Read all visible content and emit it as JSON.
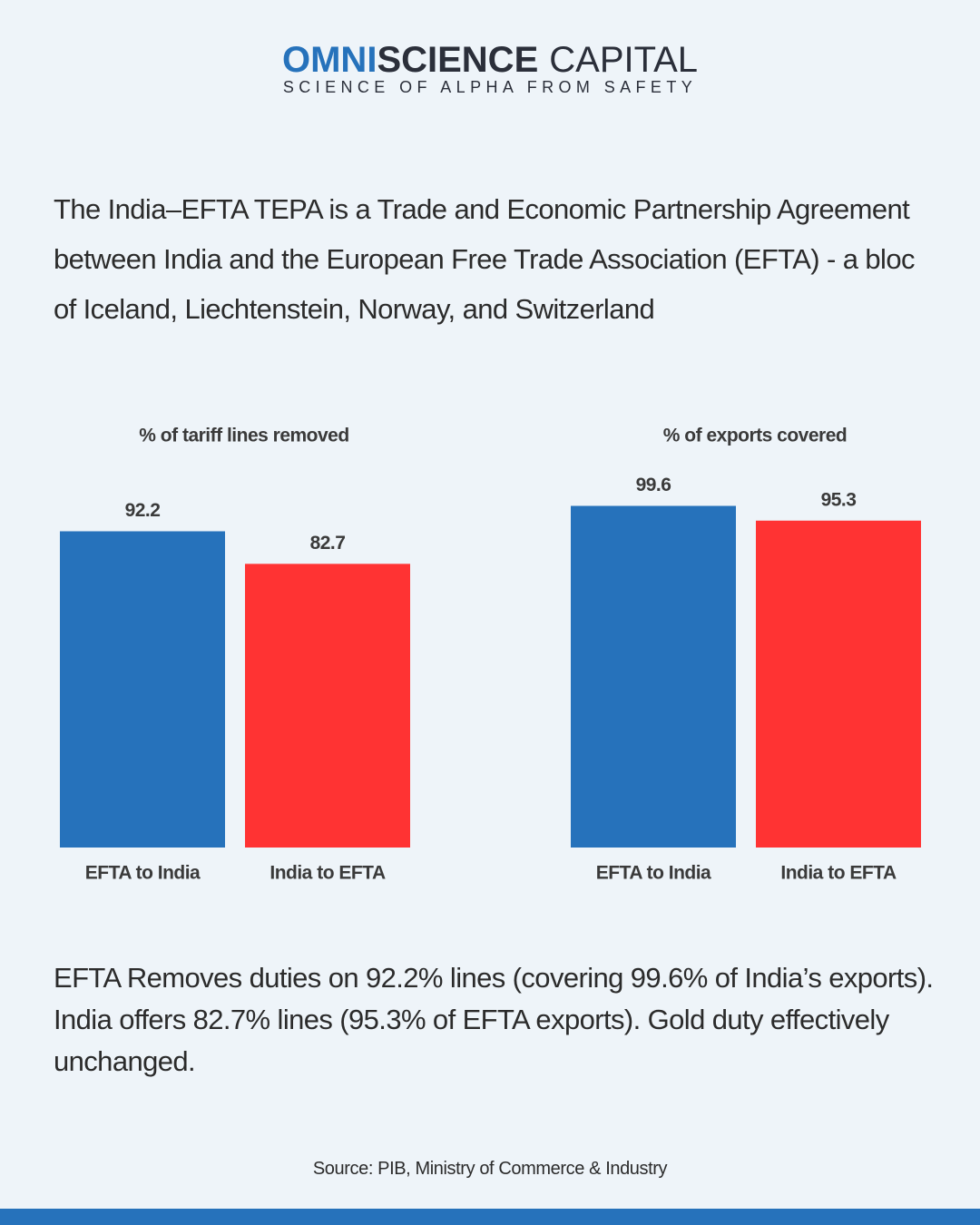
{
  "header": {
    "brand": [
      "OMNI",
      "SCIENCE",
      "CAPITAL"
    ],
    "tagline": "SCIENCE OF ALPHA FROM SAFETY"
  },
  "intro": "The India–EFTA TEPA is a Trade and Economic Partnership Agreement between India and the European Free Trade Association (EFTA) - a bloc of Iceland, Liechtenstein, Norway, and Switzerland",
  "chart_data": [
    {
      "type": "bar",
      "title": "% of tariff lines removed",
      "categories": [
        "EFTA to India",
        "India to EFTA"
      ],
      "values": [
        92.2,
        82.7
      ],
      "colors": [
        "#2672bb",
        "#ff3333"
      ],
      "ylim": [
        0,
        100
      ]
    },
    {
      "type": "bar",
      "title": "% of exports covered",
      "categories": [
        "EFTA to India",
        "India to EFTA"
      ],
      "values": [
        99.6,
        95.3
      ],
      "colors": [
        "#2672bb",
        "#ff3333"
      ],
      "ylim": [
        0,
        100
      ]
    }
  ],
  "summary": "EFTA Removes duties on 92.2% lines (covering 99.6% of India’s exports). India offers 82.7% lines (95.3% of EFTA exports). Gold duty effectively unchanged.",
  "source": "Source: PIB,  Ministry of Commerce & Industry"
}
